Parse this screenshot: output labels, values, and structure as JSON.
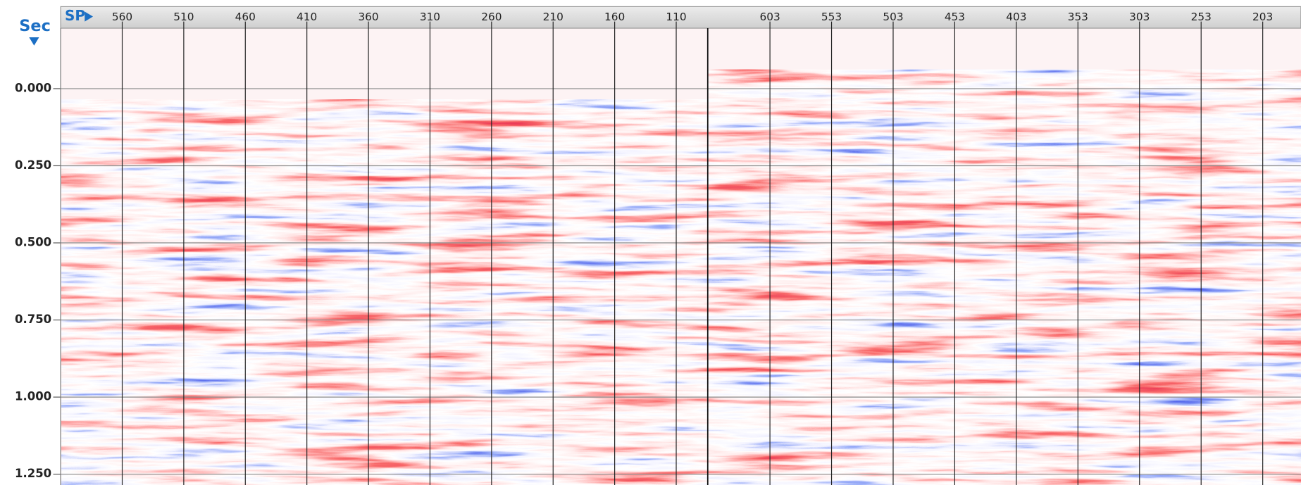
{
  "time_axis": {
    "label": "Sec",
    "lim": [
      -0.196,
      1.285
    ],
    "ticks": [
      {
        "value": 0,
        "label": "0.000"
      },
      {
        "value": 0.25,
        "label": "0.250"
      },
      {
        "value": 0.5,
        "label": "0.500"
      },
      {
        "value": 0.75,
        "label": "0.750"
      },
      {
        "value": 1,
        "label": "1.000"
      },
      {
        "value": 1.25,
        "label": "1.250"
      }
    ]
  },
  "sp_axis": {
    "label": "SP",
    "panels": [
      {
        "lim": [
          610,
          84.4
        ],
        "ticks": [
          560,
          510,
          460,
          410,
          360,
          310,
          260,
          210,
          160,
          110
        ]
      },
      {
        "lim": [
          653.5,
          172
        ],
        "ticks": [
          603,
          553,
          503,
          453,
          403,
          353,
          303,
          253,
          203
        ]
      }
    ]
  }
}
